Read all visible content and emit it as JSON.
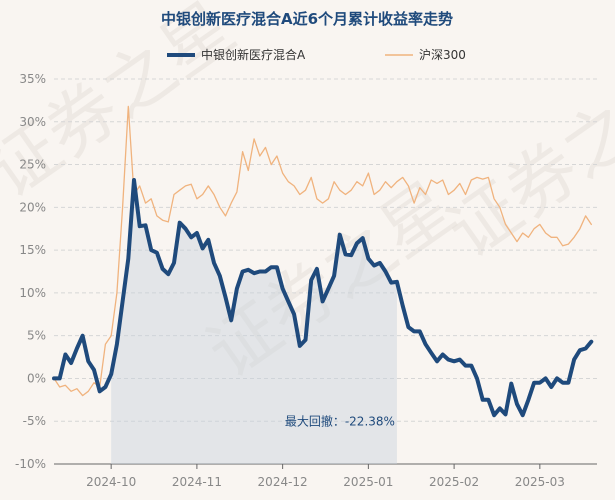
{
  "chart_data": {
    "type": "line",
    "title": "中银创新医疗混合A近6个月累计收益率走势",
    "xlabel": "",
    "ylabel": "",
    "ylim": [
      -10,
      35
    ],
    "yticks": [
      -10,
      -5,
      0,
      5,
      10,
      15,
      20,
      25,
      30,
      35
    ],
    "ytick_labels": [
      "-10%",
      "-5%",
      "0%",
      "5%",
      "10%",
      "15%",
      "20%",
      "25%",
      "30%",
      "35%"
    ],
    "xticks": [
      10,
      25,
      40,
      55,
      70,
      85
    ],
    "xtick_labels": [
      "2024-10",
      "2024-11",
      "2024-12",
      "2025-01",
      "2025-02",
      "2025-03"
    ],
    "xlim": [
      0,
      95
    ],
    "grid": true,
    "legend": "top-center",
    "watermark": "证券之星",
    "annotation": {
      "text": "最大回撤：-22.38%",
      "x": 60,
      "y": -4.2,
      "shade_from_x": 10,
      "shade_to_x": 60
    },
    "series": [
      {
        "name": "中银创新医疗混合A",
        "color": "#1f4a7c",
        "x": [
          0,
          1,
          2,
          3,
          4,
          5,
          6,
          7,
          8,
          9,
          10,
          11,
          12,
          13,
          14,
          15,
          16,
          17,
          18,
          19,
          20,
          21,
          22,
          23,
          24,
          25,
          26,
          27,
          28,
          29,
          30,
          31,
          32,
          33,
          34,
          35,
          36,
          37,
          38,
          39,
          40,
          41,
          42,
          43,
          44,
          45,
          46,
          47,
          48,
          49,
          50,
          51,
          52,
          53,
          54,
          55,
          56,
          57,
          58,
          59,
          60,
          61,
          62,
          63,
          64,
          65,
          66,
          67,
          68,
          69,
          70,
          71,
          72,
          73,
          74,
          75,
          76,
          77,
          78,
          79,
          80,
          81,
          82,
          83,
          84,
          85,
          86,
          87,
          88,
          89,
          90,
          91,
          92,
          93,
          94
        ],
        "y": [
          0,
          0,
          2.8,
          1.8,
          3.5,
          5,
          2,
          1,
          -1.5,
          -1,
          0.5,
          4,
          9,
          14,
          23.2,
          17.8,
          17.9,
          15,
          14.7,
          12.8,
          12.2,
          13.5,
          18.2,
          17.5,
          16.5,
          17,
          15.2,
          16.2,
          13.5,
          12,
          9.5,
          6.8,
          10.5,
          12.5,
          12.7,
          12.3,
          12.5,
          12.5,
          13,
          13,
          10.5,
          9,
          7.5,
          3.8,
          4.5,
          11.5,
          12.8,
          9,
          10.5,
          12,
          16.8,
          14.5,
          14.4,
          15.8,
          16.4,
          14,
          13.2,
          13.5,
          12.5,
          11.2,
          11.3,
          8.5,
          6,
          5.5,
          5.5,
          4,
          3,
          2,
          2.8,
          2.2,
          2,
          2.2,
          1.5,
          1.5,
          0,
          -2.5,
          -2.5,
          -4.3,
          -3.5,
          -4.2,
          -0.6,
          -3,
          -4.3,
          -2.5,
          -0.5,
          -0.5,
          0,
          -1,
          0,
          -0.5,
          -0.5,
          2.2,
          3.3,
          3.5,
          4.3
        ]
      },
      {
        "name": "沪深300",
        "color": "#f0b37e",
        "x": [
          0,
          1,
          2,
          3,
          4,
          5,
          6,
          7,
          8,
          9,
          10,
          11,
          12,
          13,
          14,
          15,
          16,
          17,
          18,
          19,
          20,
          21,
          22,
          23,
          24,
          25,
          26,
          27,
          28,
          29,
          30,
          31,
          32,
          33,
          34,
          35,
          36,
          37,
          38,
          39,
          40,
          41,
          42,
          43,
          44,
          45,
          46,
          47,
          48,
          49,
          50,
          51,
          52,
          53,
          54,
          55,
          56,
          57,
          58,
          59,
          60,
          61,
          62,
          63,
          64,
          65,
          66,
          67,
          68,
          69,
          70,
          71,
          72,
          73,
          74,
          75,
          76,
          77,
          78,
          79,
          80,
          81,
          82,
          83,
          84,
          85,
          86,
          87,
          88,
          89,
          90,
          91,
          92,
          93,
          94
        ],
        "y": [
          0,
          -1,
          -0.8,
          -1.5,
          -1.2,
          -2,
          -1.5,
          -0.5,
          -1,
          4,
          5,
          10,
          20,
          31.8,
          21.5,
          22.5,
          20.5,
          21,
          19,
          18.5,
          18.3,
          21.5,
          22,
          22.5,
          22.7,
          21,
          21.5,
          22.5,
          21.5,
          20,
          19,
          20.5,
          21.8,
          26.5,
          24.3,
          28,
          26,
          27,
          25,
          26,
          24,
          23,
          22.5,
          21.5,
          22,
          23.5,
          21,
          20.5,
          21,
          23,
          22,
          21.5,
          22,
          23,
          22.5,
          24,
          21.5,
          22,
          23,
          22.3,
          23,
          23.5,
          22.5,
          20.5,
          22.3,
          21.5,
          23.2,
          22.8,
          23.2,
          21.5,
          22,
          22.8,
          21.5,
          23.2,
          23.5,
          23.3,
          23.5,
          21,
          20,
          18,
          17,
          16,
          17,
          16.5,
          17.5,
          18,
          17,
          16.5,
          16.5,
          15.5,
          15.7,
          16.5,
          17.5,
          19,
          18
        ]
      }
    ]
  }
}
